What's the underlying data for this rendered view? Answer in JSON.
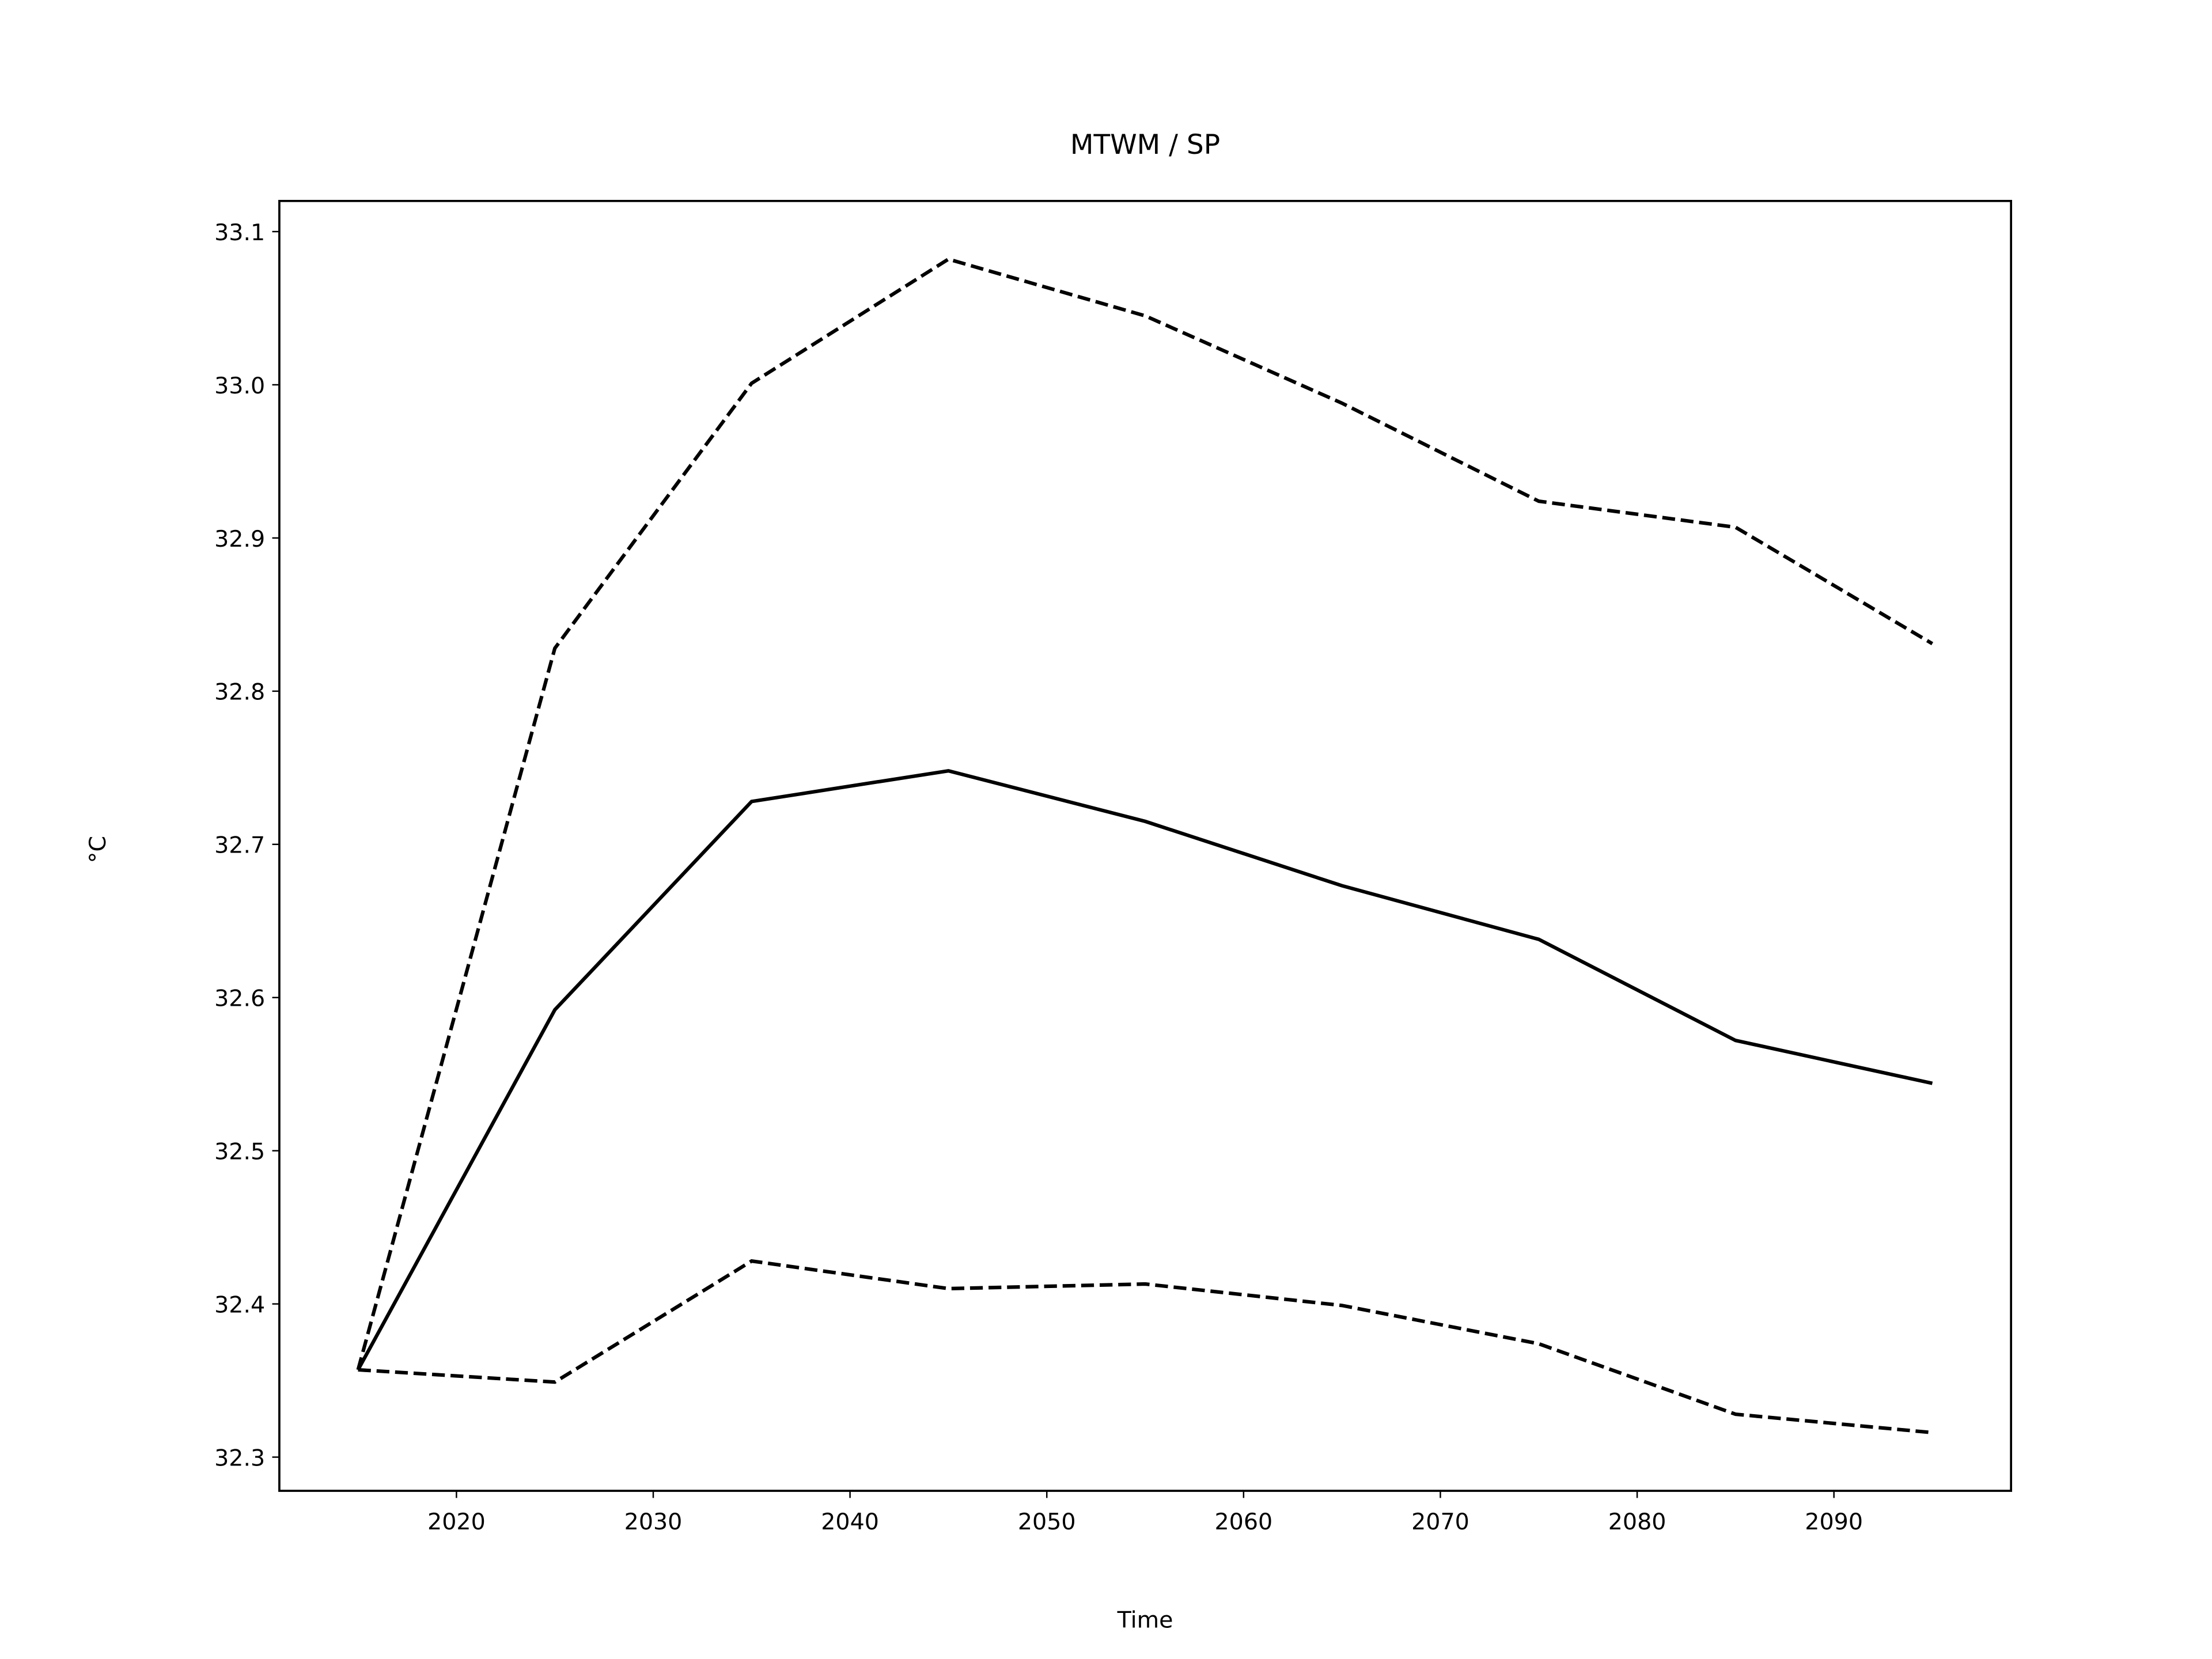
{
  "chart_data": {
    "type": "line",
    "title": "MTWM / SP",
    "xlabel": "Time",
    "ylabel": "°C",
    "x": [
      2015,
      2025,
      2035,
      2045,
      2055,
      2065,
      2075,
      2085,
      2095
    ],
    "series": [
      {
        "color": "#000000",
        "linestyle": "dashed",
        "values": [
          32.357,
          32.828,
          33.001,
          33.082,
          33.045,
          32.988,
          32.924,
          32.907,
          32.831
        ]
      },
      {
        "color": "#000000",
        "linestyle": "solid",
        "values": [
          32.357,
          32.592,
          32.728,
          32.748,
          32.715,
          32.673,
          32.638,
          32.572,
          32.544
        ]
      },
      {
        "color": "#000000",
        "linestyle": "dashed",
        "values": [
          32.357,
          32.349,
          32.428,
          32.41,
          32.413,
          32.399,
          32.374,
          32.328,
          32.316
        ]
      }
    ],
    "xlim": [
      2011,
      2099
    ],
    "xticks": [
      2020,
      2030,
      2040,
      2050,
      2060,
      2070,
      2080,
      2090
    ],
    "ylim": [
      32.278,
      33.12
    ],
    "yticks": [
      32.3,
      32.4,
      32.5,
      32.6,
      32.7,
      32.8,
      32.9,
      {
        "value": 33.0,
        "label": "33.0"
      },
      33.1
    ],
    "grid": false
  }
}
